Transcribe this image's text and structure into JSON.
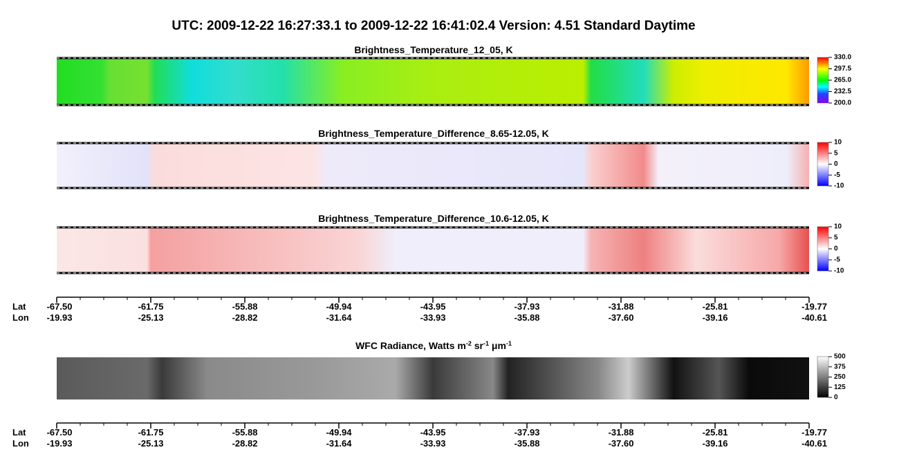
{
  "title": "UTC:  2009-12-22   16:27:33.1  to  2009-12-22   16:41:02.4    Version: 4.51  Standard Daytime",
  "panels": [
    {
      "title": "Brightness_Temperature_12_05, K",
      "colorbar": {
        "lim": [
          200,
          330
        ],
        "ticks": [
          {
            "value": 330,
            "label": "330.0"
          },
          {
            "value": 297.5,
            "label": "297.5"
          },
          {
            "value": 265,
            "label": "265.0"
          },
          {
            "value": 232.5,
            "label": "232.5"
          },
          {
            "value": 200,
            "label": "200.0"
          }
        ]
      }
    },
    {
      "title": "Brightness_Temperature_Difference_8.65-12.05, K",
      "colorbar": {
        "lim": [
          -10,
          10
        ],
        "ticks": [
          10,
          5,
          0,
          -5,
          -10
        ]
      }
    },
    {
      "title": "Brightness_Temperature_Difference_10.6-12.05, K",
      "colorbar": {
        "lim": [
          -10,
          10
        ],
        "ticks": [
          10,
          5,
          0,
          -5,
          -10
        ]
      }
    },
    {
      "title_parts": [
        "WFC Radiance, Watts m",
        "-2",
        " sr",
        "-1",
        " μm",
        "-1"
      ],
      "colorbar": {
        "lim": [
          0,
          500
        ],
        "ticks": [
          500,
          375,
          250,
          125,
          0
        ]
      }
    }
  ],
  "axes": [
    {
      "lat_label": "Lat",
      "lon_label": "Lon",
      "lat": [
        "-67.50",
        "-61.75",
        "-55.88",
        "-49.94",
        "-43.95",
        "-37.93",
        "-31.88",
        "-25.81",
        "-19.77"
      ],
      "lon": [
        "-19.93",
        "-25.13",
        "-28.82",
        "-31.64",
        "-33.93",
        "-35.88",
        "-37.60",
        "-39.16",
        "-40.61"
      ]
    },
    {
      "lat_label": "Lat",
      "lon_label": "Lon",
      "lat": [
        "-67.50",
        "-61.75",
        "-55.88",
        "-49.94",
        "-43.95",
        "-37.93",
        "-31.88",
        "-25.81",
        "-19.77"
      ],
      "lon": [
        "-19.93",
        "-25.13",
        "-28.82",
        "-31.64",
        "-33.93",
        "-35.88",
        "-37.60",
        "-39.16",
        "-40.61"
      ]
    }
  ]
}
